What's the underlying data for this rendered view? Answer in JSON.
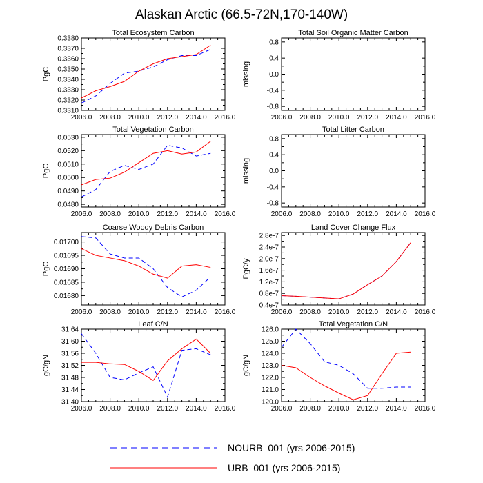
{
  "title": "Alaskan Arctic (66.5-72N,170-140W)",
  "legend": [
    {
      "name": "NOURB_001",
      "label": "NOURB_001 (yrs 2006-2015)",
      "color": "#0000ff",
      "style": "dashed"
    },
    {
      "name": "URB_001",
      "label": "URB_001 (yrs 2006-2015)",
      "color": "#ff0000",
      "style": "solid"
    }
  ],
  "chart_data": [
    {
      "type": "line",
      "title": "Total Ecosystem Carbon",
      "ylabel": "PgC",
      "xlim": [
        2006,
        2016
      ],
      "ylim": [
        0.331,
        0.338
      ],
      "xticks": [
        2006,
        2008,
        2010,
        2012,
        2014,
        2016
      ],
      "xtick_labels": [
        "2006.0",
        "2008.0",
        "2010.0",
        "2012.0",
        "2014.0",
        "2016.0"
      ],
      "yticks": [
        0.331,
        0.332,
        0.333,
        0.334,
        0.335,
        0.336,
        0.337,
        0.338
      ],
      "ytick_labels": [
        "0.3310",
        "0.3320",
        "0.3330",
        "0.3340",
        "0.3350",
        "0.3360",
        "0.3370",
        "0.3380"
      ],
      "x": [
        2006,
        2007,
        2008,
        2009,
        2010,
        2011,
        2012,
        2013,
        2014,
        2015
      ],
      "series": [
        {
          "name": "NOURB_001",
          "values": [
            0.3317,
            0.3324,
            0.3336,
            0.3346,
            0.3348,
            0.3352,
            0.3359,
            0.3363,
            0.3363,
            0.3369
          ]
        },
        {
          "name": "URB_001",
          "values": [
            0.3322,
            0.3329,
            0.3333,
            0.3338,
            0.3348,
            0.3355,
            0.336,
            0.3362,
            0.3364,
            0.3373
          ]
        }
      ]
    },
    {
      "type": "line",
      "title": "Total Soil Organic Matter Carbon",
      "ylabel": "missing",
      "xlim": [
        2006,
        2016
      ],
      "ylim": [
        -0.9,
        0.9
      ],
      "xticks": [
        2006,
        2008,
        2010,
        2012,
        2014,
        2016
      ],
      "xtick_labels": [
        "2006.0",
        "2008.0",
        "2010.0",
        "2012.0",
        "2014.0",
        "2016.0"
      ],
      "yticks": [
        -0.8,
        -0.4,
        0.0,
        0.4,
        0.8
      ],
      "ytick_labels": [
        "-0.8",
        "-0.4",
        "0.0",
        "0.4",
        "0.8"
      ],
      "x": [],
      "series": []
    },
    {
      "type": "line",
      "title": "Total Vegetation Carbon",
      "ylabel": "PgC",
      "xlim": [
        2006,
        2016
      ],
      "ylim": [
        0.0478,
        0.0532
      ],
      "xticks": [
        2006,
        2008,
        2010,
        2012,
        2014,
        2016
      ],
      "xtick_labels": [
        "2006.0",
        "2008.0",
        "2010.0",
        "2012.0",
        "2014.0",
        "2016.0"
      ],
      "yticks": [
        0.048,
        0.049,
        0.05,
        0.051,
        0.052,
        0.053
      ],
      "ytick_labels": [
        "0.0480",
        "0.0490",
        "0.0500",
        "0.0510",
        "0.0520",
        "0.0530"
      ],
      "x": [
        2006,
        2007,
        2008,
        2009,
        2010,
        2011,
        2012,
        2013,
        2014,
        2015
      ],
      "series": [
        {
          "name": "NOURB_001",
          "values": [
            0.04855,
            0.0491,
            0.05045,
            0.0509,
            0.0506,
            0.051,
            0.0524,
            0.0522,
            0.0516,
            0.0518
          ]
        },
        {
          "name": "URB_001",
          "values": [
            0.04945,
            0.04985,
            0.04995,
            0.0504,
            0.0511,
            0.0518,
            0.052,
            0.05175,
            0.0519,
            0.0527
          ]
        }
      ]
    },
    {
      "type": "line",
      "title": "Total Litter Carbon",
      "ylabel": "missing",
      "xlim": [
        2006,
        2016
      ],
      "ylim": [
        -0.9,
        0.9
      ],
      "xticks": [
        2006,
        2008,
        2010,
        2012,
        2014,
        2016
      ],
      "xtick_labels": [
        "2006.0",
        "2008.0",
        "2010.0",
        "2012.0",
        "2014.0",
        "2016.0"
      ],
      "yticks": [
        -0.8,
        -0.4,
        0.0,
        0.4,
        0.8
      ],
      "ytick_labels": [
        "-0.8",
        "-0.4",
        "0.0",
        "0.4",
        "0.8"
      ],
      "x": [],
      "series": []
    },
    {
      "type": "line",
      "title": "Coarse Woody Debris Carbon",
      "ylabel": "PgC",
      "xlim": [
        2006,
        2016
      ],
      "ylim": [
        0.016765,
        0.017035
      ],
      "xticks": [
        2006,
        2008,
        2010,
        2012,
        2014,
        2016
      ],
      "xtick_labels": [
        "2006.0",
        "2008.0",
        "2010.0",
        "2012.0",
        "2014.0",
        "2016.0"
      ],
      "yticks": [
        0.0168,
        0.01685,
        0.0169,
        0.01695,
        0.017
      ],
      "ytick_labels": [
        "0.01680",
        "0.01685",
        "0.01690",
        "0.01695",
        "0.01700"
      ],
      "x": [
        2006,
        2007,
        2008,
        2009,
        2010,
        2011,
        2012,
        2013,
        2014,
        2015
      ],
      "series": [
        {
          "name": "NOURB_001",
          "values": [
            0.01702,
            0.017015,
            0.016955,
            0.01694,
            0.01694,
            0.0169,
            0.01683,
            0.016795,
            0.01682,
            0.01687
          ]
        },
        {
          "name": "URB_001",
          "values": [
            0.016975,
            0.01695,
            0.01694,
            0.01693,
            0.01691,
            0.01688,
            0.016865,
            0.01691,
            0.016915,
            0.016905
          ]
        }
      ]
    },
    {
      "type": "line",
      "title": "Land Cover Change Flux",
      "ylabel": "PgC/y",
      "xlim": [
        2006,
        2016
      ],
      "ylim": [
        4e-08,
        2.9e-07
      ],
      "xticks": [
        2006,
        2008,
        2010,
        2012,
        2014,
        2016
      ],
      "xtick_labels": [
        "2006.0",
        "2008.0",
        "2010.0",
        "2012.0",
        "2014.0",
        "2016.0"
      ],
      "yticks": [
        4e-08,
        8e-08,
        1.2e-07,
        1.6e-07,
        2e-07,
        2.4e-07,
        2.8e-07
      ],
      "ytick_labels": [
        "0.4e-7",
        "0.8e-7",
        "1.2e-7",
        "1.6e-7",
        "2.0e-7",
        "2.4e-7",
        "2.8e-7"
      ],
      "x": [
        2006,
        2007,
        2008,
        2009,
        2010,
        2011,
        2012,
        2013,
        2014,
        2015
      ],
      "series": [
        {
          "name": "NOURB_001",
          "values": [
            7.2e-08,
            7e-08,
            6.7e-08,
            6.4e-08,
            6.1e-08,
            7.8e-08,
            1.1e-07,
            1.4e-07,
            1.9e-07,
            2.55e-07
          ]
        },
        {
          "name": "URB_001",
          "values": [
            7.2e-08,
            7e-08,
            6.7e-08,
            6.4e-08,
            6.1e-08,
            7.8e-08,
            1.1e-07,
            1.4e-07,
            1.9e-07,
            2.55e-07
          ]
        }
      ]
    },
    {
      "type": "line",
      "title": "Leaf C/N",
      "ylabel": "gC/gN",
      "xlim": [
        2006,
        2016
      ],
      "ylim": [
        31.4,
        31.64
      ],
      "xticks": [
        2006,
        2008,
        2010,
        2012,
        2014,
        2016
      ],
      "xtick_labels": [
        "2006.0",
        "2008.0",
        "2010.0",
        "2012.0",
        "2014.0",
        "2016.0"
      ],
      "yticks": [
        31.4,
        31.44,
        31.48,
        31.52,
        31.56,
        31.6,
        31.64
      ],
      "ytick_labels": [
        "31.40",
        "31.44",
        "31.48",
        "31.52",
        "31.56",
        "31.60",
        "31.64"
      ],
      "x": [
        2006,
        2007,
        2008,
        2009,
        2010,
        2011,
        2012,
        2013,
        2014,
        2015
      ],
      "series": [
        {
          "name": "NOURB_001",
          "values": [
            31.625,
            31.56,
            31.48,
            31.472,
            31.495,
            31.515,
            31.415,
            31.57,
            31.575,
            31.555
          ]
        },
        {
          "name": "URB_001",
          "values": [
            31.53,
            31.53,
            31.525,
            31.523,
            31.5,
            31.47,
            31.535,
            31.575,
            31.607,
            31.56
          ]
        }
      ]
    },
    {
      "type": "line",
      "title": "Total Vegetation C/N",
      "ylabel": "gC/gN",
      "xlim": [
        2006,
        2016
      ],
      "ylim": [
        120,
        126
      ],
      "xticks": [
        2006,
        2008,
        2010,
        2012,
        2014,
        2016
      ],
      "xtick_labels": [
        "2006.0",
        "2008.0",
        "2010.0",
        "2012.0",
        "2014.0",
        "2016.0"
      ],
      "yticks": [
        120,
        121,
        122,
        123,
        124,
        125,
        126
      ],
      "ytick_labels": [
        "120.0",
        "121.0",
        "122.0",
        "123.0",
        "124.0",
        "125.0",
        "126.0"
      ],
      "x": [
        2006,
        2007,
        2008,
        2009,
        2010,
        2011,
        2012,
        2013,
        2014,
        2015
      ],
      "series": [
        {
          "name": "NOURB_001",
          "values": [
            124.5,
            126.0,
            124.8,
            123.3,
            123.0,
            122.3,
            121.1,
            121.1,
            121.2,
            121.2
          ]
        },
        {
          "name": "URB_001",
          "values": [
            123.0,
            122.8,
            122.0,
            121.3,
            120.7,
            120.15,
            120.5,
            122.3,
            124.0,
            124.1
          ]
        }
      ]
    }
  ]
}
